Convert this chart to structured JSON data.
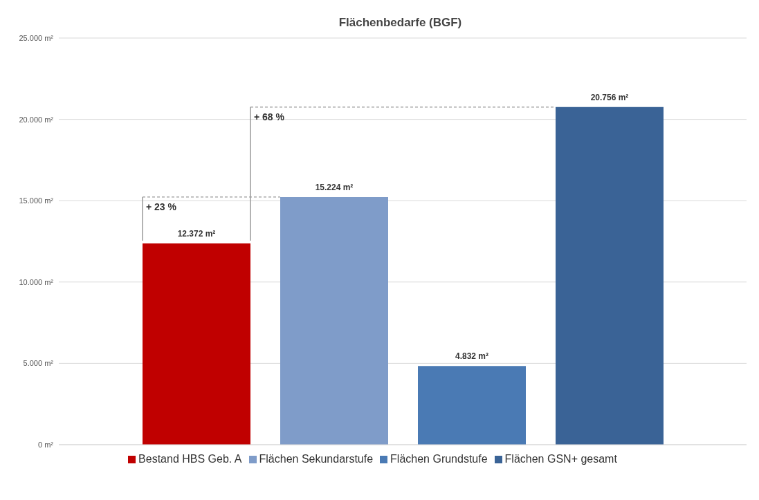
{
  "chart_data": {
    "type": "bar",
    "title": "Flächenbedarfe (BGF)",
    "categories": [
      null
    ],
    "series": [
      {
        "name": "Bestand HBS Geb. A",
        "color": "#c00000",
        "values": [
          12372
        ],
        "value_labels": [
          "12.372 m²"
        ]
      },
      {
        "name": "Flächen Sekundarstufe",
        "color": "#7f9cc9",
        "values": [
          15224
        ],
        "value_labels": [
          "15.224 m²"
        ]
      },
      {
        "name": "Flächen Grundstufe",
        "color": "#4a7ab4",
        "values": [
          4832
        ],
        "value_labels": [
          "4.832 m²"
        ]
      },
      {
        "name": "Flächen GSN+ gesamt",
        "color": "#3a6396",
        "values": [
          20756
        ],
        "value_labels": [
          "20.756 m²"
        ]
      }
    ],
    "ylim": [
      0,
      25000
    ],
    "yticks": [
      {
        "value": 0,
        "label": "0 m²"
      },
      {
        "value": 5000,
        "label": "5.000 m²"
      },
      {
        "value": 10000,
        "label": "10.000 m²"
      },
      {
        "value": 15000,
        "label": "15.000 m²"
      },
      {
        "value": 20000,
        "label": "20.000 m²"
      },
      {
        "value": 25000,
        "label": "25.000 m²"
      }
    ],
    "grid": "y",
    "legend": "bottom",
    "annotations": [
      "+ 23 %",
      "+ 68 %"
    ]
  }
}
